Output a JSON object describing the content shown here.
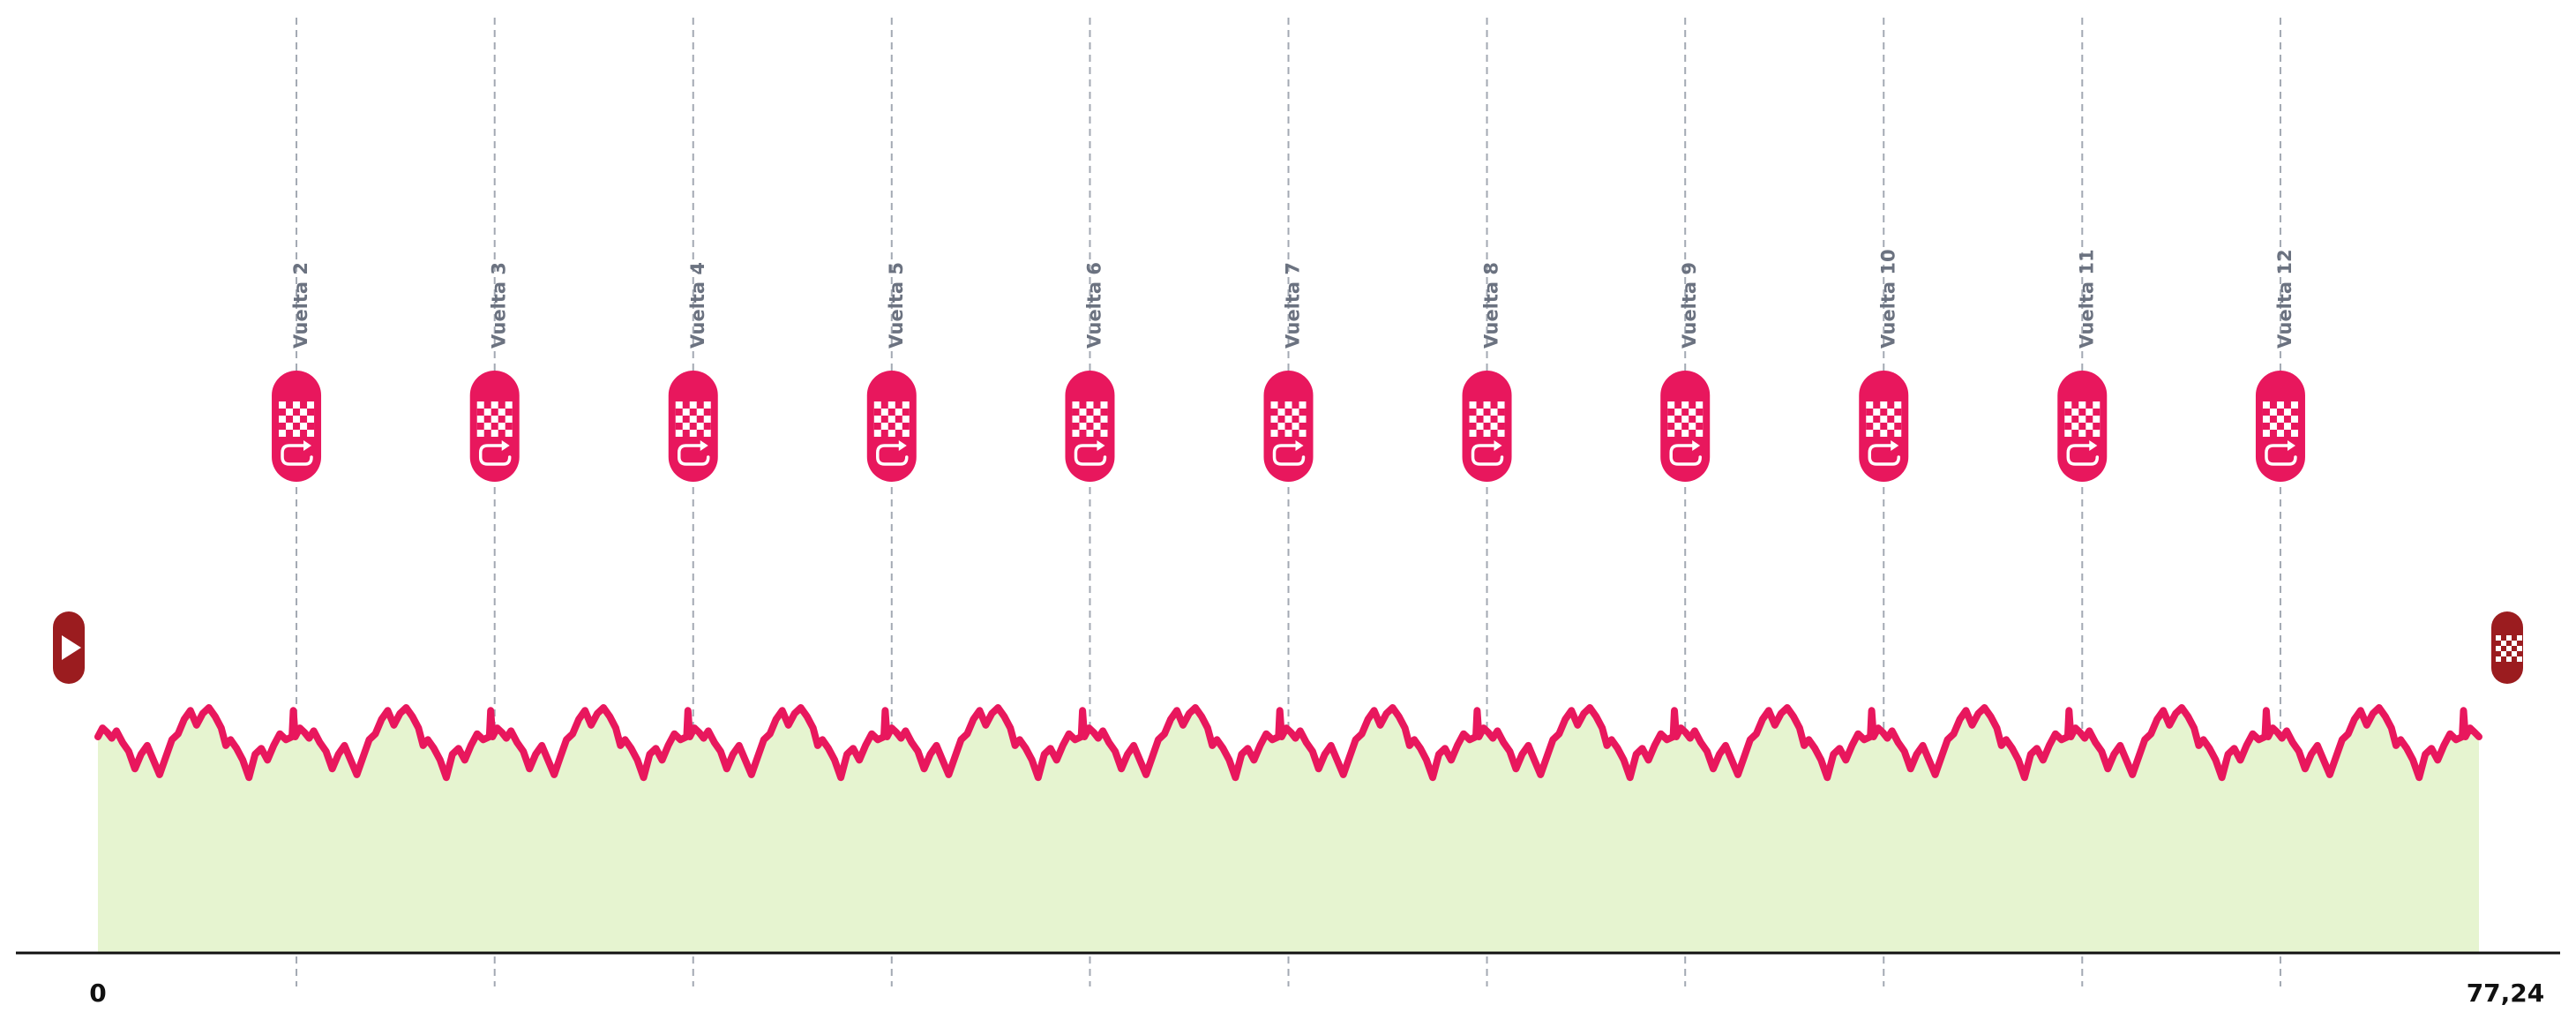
{
  "chart_data": {
    "type": "area",
    "title": "",
    "xlabel": "",
    "ylabel": "",
    "xlim": [
      0,
      77.24
    ],
    "x_tick_labels": [
      "0",
      "77,24"
    ],
    "x_end": 77.24,
    "laps": [
      {
        "label": "Vuelta 2",
        "km": 6.44
      },
      {
        "label": "Vuelta 3",
        "km": 12.87
      },
      {
        "label": "Vuelta 4",
        "km": 19.31
      },
      {
        "label": "Vuelta 5",
        "km": 25.75
      },
      {
        "label": "Vuelta 6",
        "km": 32.18
      },
      {
        "label": "Vuelta 7",
        "km": 38.62
      },
      {
        "label": "Vuelta 8",
        "km": 45.06
      },
      {
        "label": "Vuelta 9",
        "km": 51.49
      },
      {
        "label": "Vuelta 10",
        "km": 57.93
      },
      {
        "label": "Vuelta 11",
        "km": 64.37
      },
      {
        "label": "Vuelta 12",
        "km": 70.8
      }
    ],
    "elevation_profile_lap": [
      [
        0.0,
        0.0
      ],
      [
        0.15,
        3.0
      ],
      [
        0.3,
        1.5
      ],
      [
        0.45,
        -0.5
      ],
      [
        0.6,
        2.0
      ],
      [
        0.8,
        -2.0
      ],
      [
        1.0,
        -5.0
      ],
      [
        1.2,
        -11.0
      ],
      [
        1.4,
        -6.0
      ],
      [
        1.6,
        -3.0
      ],
      [
        1.8,
        -8.0
      ],
      [
        2.0,
        -13.0
      ],
      [
        2.2,
        -7.0
      ],
      [
        2.4,
        -1.0
      ],
      [
        2.6,
        1.0
      ],
      [
        2.8,
        6.0
      ],
      [
        3.0,
        9.0
      ],
      [
        3.2,
        4.0
      ],
      [
        3.4,
        8.0
      ],
      [
        3.6,
        10.0
      ],
      [
        3.8,
        7.0
      ],
      [
        4.0,
        3.0
      ],
      [
        4.15,
        -3.0
      ],
      [
        4.3,
        -1.0
      ],
      [
        4.5,
        -4.0
      ],
      [
        4.7,
        -8.0
      ],
      [
        4.9,
        -14.0
      ],
      [
        5.1,
        -6.0
      ],
      [
        5.3,
        -4.0
      ],
      [
        5.5,
        -8.0
      ],
      [
        5.7,
        -3.0
      ],
      [
        5.9,
        1.0
      ],
      [
        6.1,
        -1.0
      ],
      [
        6.3,
        0.0
      ],
      [
        6.34,
        9.0
      ],
      [
        6.4,
        0.0
      ]
    ],
    "profile_base_elevation": 100,
    "colors": {
      "profile_line": "#e8175d",
      "profile_fill": "#e6f4d0",
      "lap_marker": "#e8175d",
      "start_finish_marker": "#9b1c1f",
      "gridline": "#a3a9b3",
      "axis": "#111111"
    },
    "markers": {
      "lap_icon": "checkered-flag-loop-icon",
      "start_icon": "start-play-icon",
      "finish_icon": "finish-checkered-flag-icon"
    }
  }
}
